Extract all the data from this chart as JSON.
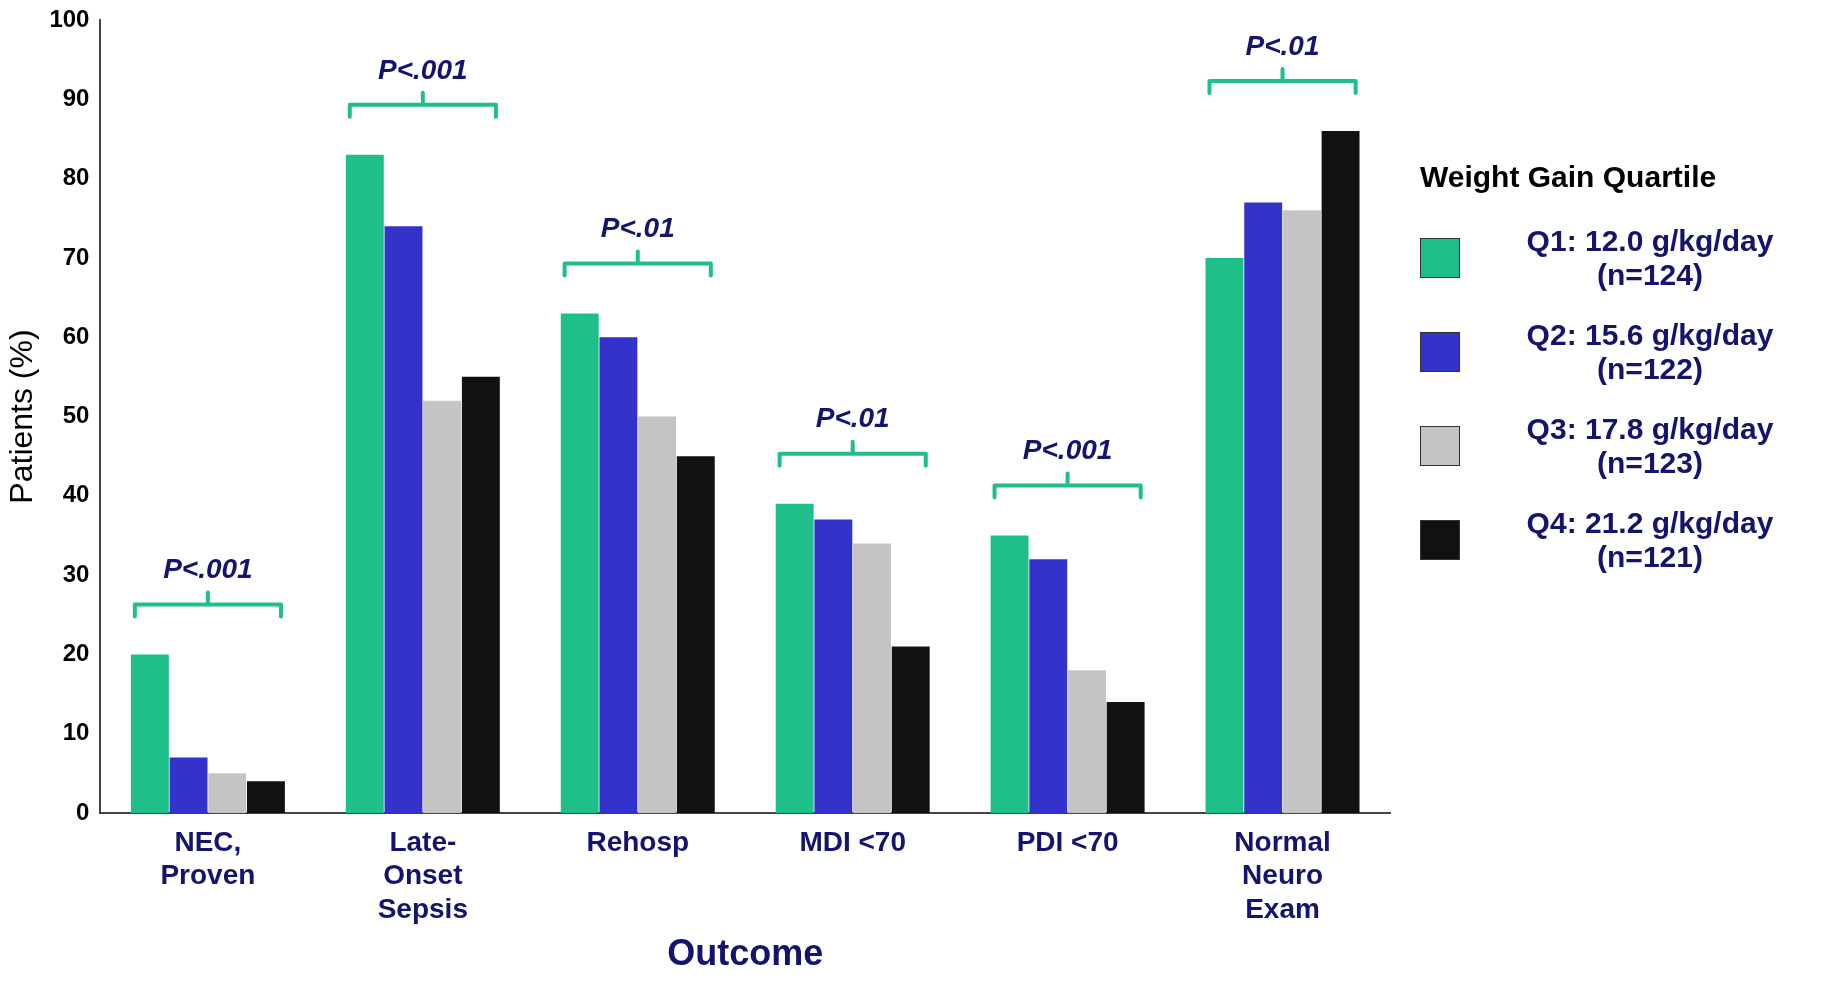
{
  "chart_data": {
    "type": "bar",
    "xlabel": "Outcome",
    "ylabel": "Patients (%)",
    "legend_title": "Weight Gain Quartile",
    "legend": "right",
    "grid": false,
    "categories": [
      "NEC, Proven",
      "Late-Onset Sepsis",
      "Rehosp",
      "MDI <70",
      "PDI <70",
      "Normal Neuro Exam"
    ],
    "series": [
      {
        "name": "Q1: 12.0 g/kg/day (n=124)",
        "color": "#1fbf8c",
        "values": [
          20,
          83,
          63,
          39,
          35,
          70
        ]
      },
      {
        "name": "Q2: 15.6 g/kg/day (n=122)",
        "color": "#3333cc",
        "values": [
          7,
          74,
          60,
          37,
          32,
          77
        ]
      },
      {
        "name": "Q3: 17.8 g/kg/day (n=123)",
        "color": "#c4c4c4",
        "values": [
          5,
          52,
          50,
          34,
          18,
          76
        ]
      },
      {
        "name": "Q4: 21.2 g/kg/day (n=121)",
        "color": "#111111",
        "values": [
          4,
          55,
          45,
          21,
          14,
          86
        ]
      }
    ],
    "ylim": [
      0,
      100
    ],
    "yticks": [
      0,
      10,
      20,
      30,
      40,
      50,
      60,
      70,
      80,
      90,
      100
    ],
    "annotations": [
      "P<.001",
      "P<.001",
      "P<.01",
      "P<.01",
      "P<.001",
      "P<.01"
    ]
  }
}
